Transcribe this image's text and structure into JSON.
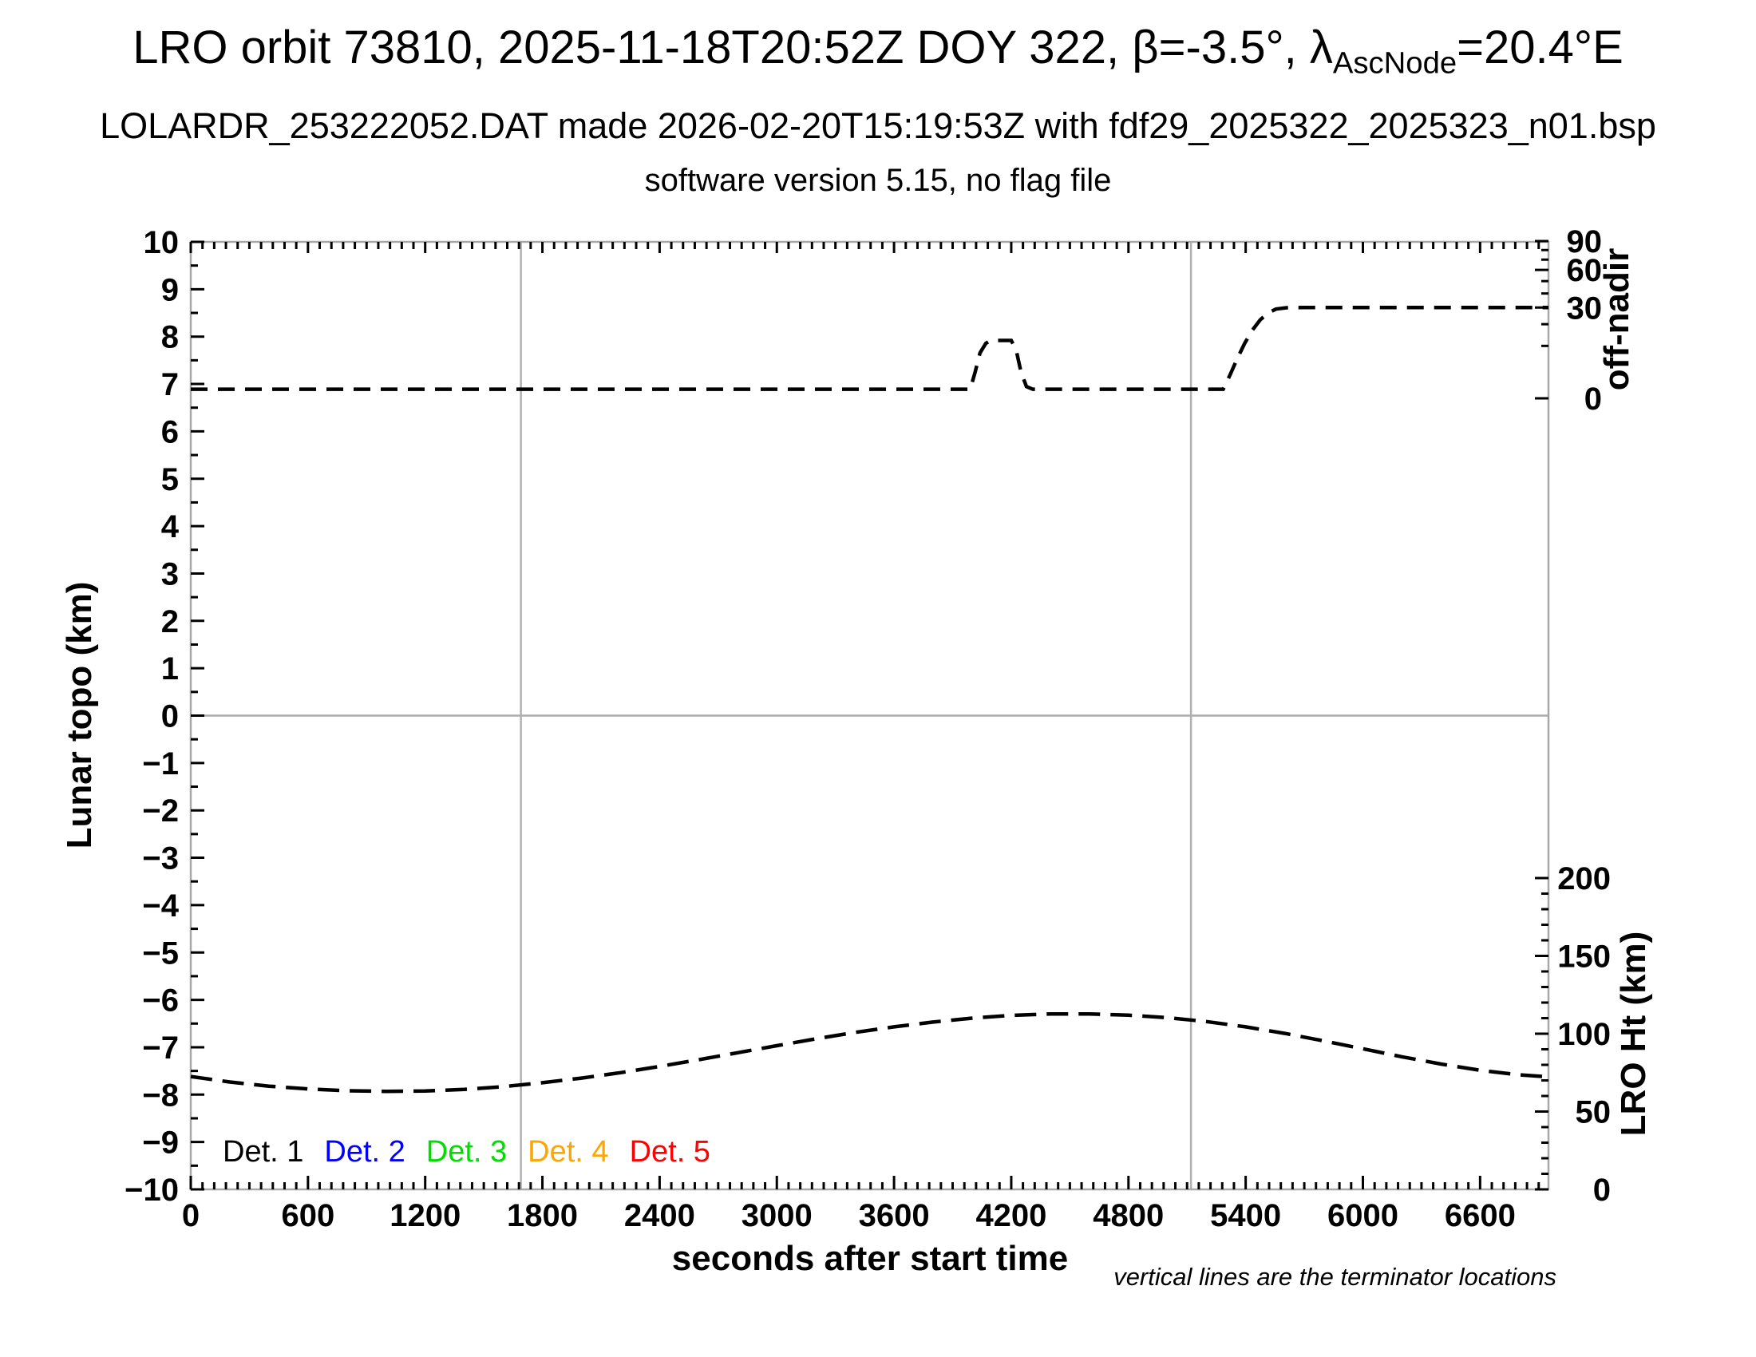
{
  "title": {
    "prefix": "LRO orbit 73810, 2025-11-18T20:52Z DOY 322, β=-3.5°, λ",
    "subscript": "AscNode",
    "suffix": "=20.4°E"
  },
  "subtitle": "LOLARDR_253222052.DAT made 2026-02-20T15:19:53Z with fdf29_2025322_2025323_n01.bsp",
  "subtitle2": "software version 5.15, no flag file",
  "footnote": "vertical lines are the terminator locations",
  "legend": {
    "items": [
      {
        "label": "Det. 1",
        "color": "#000000"
      },
      {
        "label": "Det. 2",
        "color": "#0000ff"
      },
      {
        "label": "Det. 3",
        "color": "#00dd00"
      },
      {
        "label": "Det. 4",
        "color": "#ffa500"
      },
      {
        "label": "Det. 5",
        "color": "#ff0000"
      }
    ]
  },
  "colors": {
    "frame": "#a8a8a8",
    "zero_line": "#ababab",
    "terminator_line": "#b0b0b0",
    "curve": "#000000",
    "tick": "#000000"
  },
  "chart_data": {
    "type": "line",
    "title": "LRO orbit 73810, 2025-11-18T20:52Z DOY 322, β=-3.5°, λ_AscNode=20.4°E",
    "x_axis": {
      "label": "seconds after start time",
      "min": 0,
      "max": 6950,
      "major_tick_step": 600,
      "minor_tick_step": 60,
      "tick_labels": [
        "0",
        "600",
        "1200",
        "1800",
        "2400",
        "3000",
        "3600",
        "4200",
        "4800",
        "5400",
        "6000",
        "6600"
      ]
    },
    "y_left": {
      "label": "Lunar topo (km)",
      "min": -10,
      "max": 10,
      "major_tick_step": 1,
      "minor_tick_step": 0.5,
      "tick_labels": [
        "10",
        "9",
        "8",
        "7",
        "6",
        "5",
        "4",
        "3",
        "2",
        "1",
        "0",
        "−1",
        "−2",
        "−3",
        "−4",
        "−5",
        "−6",
        "−7",
        "−8",
        "−9",
        "−10"
      ]
    },
    "y_right_top": {
      "label": "off-nadir",
      "units": "degrees",
      "scale": "sqrt",
      "major_ticks": [
        90,
        60,
        30,
        0
      ],
      "minor_ticks": [
        80,
        70,
        50,
        40,
        20,
        10
      ],
      "tick_labels": [
        "90",
        "60",
        "30",
        "0"
      ]
    },
    "y_right_bottom": {
      "label": "LRO Ht (km)",
      "min": 0,
      "max": 200,
      "major_tick_step": 50,
      "minor_tick_step": 10,
      "tick_labels": [
        "200",
        "150",
        "100",
        "50",
        "0"
      ]
    },
    "terminator_lines_sec": [
      1690,
      5120
    ],
    "zero_line_topo": 0,
    "grid": false,
    "legend_position": "bottom-left-inside",
    "series": [
      {
        "name": "off-nadir angle",
        "axis": "y_right_top",
        "style": "dashed",
        "color": "#000000",
        "points": [
          [
            0,
            0.3
          ],
          [
            3990,
            0.3
          ],
          [
            4015,
            2.5
          ],
          [
            4040,
            7.5
          ],
          [
            4070,
            11
          ],
          [
            4095,
            12.2
          ],
          [
            4200,
            12.2
          ],
          [
            4225,
            8.5
          ],
          [
            4250,
            2.5
          ],
          [
            4278,
            0.5
          ],
          [
            4310,
            0.3
          ],
          [
            5285,
            0.3
          ],
          [
            5320,
            2
          ],
          [
            5355,
            5.5
          ],
          [
            5395,
            11
          ],
          [
            5435,
            17
          ],
          [
            5475,
            22.5
          ],
          [
            5515,
            26.5
          ],
          [
            5555,
            29
          ],
          [
            5610,
            29.9
          ],
          [
            5680,
            30
          ],
          [
            6950,
            30
          ]
        ]
      },
      {
        "name": "LRO height",
        "axis": "y_right_bottom",
        "style": "dashed",
        "color": "#000000",
        "points": [
          [
            0,
            72.5
          ],
          [
            200,
            69
          ],
          [
            400,
            66.3
          ],
          [
            600,
            64.5
          ],
          [
            800,
            63.4
          ],
          [
            1000,
            63
          ],
          [
            1200,
            63.2
          ],
          [
            1400,
            64.2
          ],
          [
            1600,
            66
          ],
          [
            1800,
            68.5
          ],
          [
            2000,
            71.5
          ],
          [
            2200,
            75
          ],
          [
            2400,
            79
          ],
          [
            2600,
            83.3
          ],
          [
            2800,
            87.8
          ],
          [
            3000,
            92.3
          ],
          [
            3200,
            96.7
          ],
          [
            3400,
            100.8
          ],
          [
            3600,
            104.4
          ],
          [
            3800,
            107.5
          ],
          [
            4000,
            110
          ],
          [
            4200,
            111.8
          ],
          [
            4400,
            112.7
          ],
          [
            4600,
            112.7
          ],
          [
            4800,
            111.9
          ],
          [
            5000,
            110.3
          ],
          [
            5200,
            107.8
          ],
          [
            5400,
            104.4
          ],
          [
            5600,
            100.2
          ],
          [
            5800,
            95.4
          ],
          [
            6000,
            90.3
          ],
          [
            6200,
            85.2
          ],
          [
            6400,
            80.5
          ],
          [
            6600,
            76.5
          ],
          [
            6800,
            73.6
          ],
          [
            6950,
            72.3
          ]
        ]
      }
    ]
  }
}
